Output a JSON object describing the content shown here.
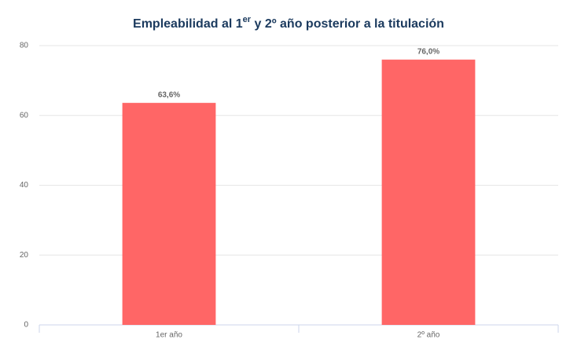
{
  "chart_data": {
    "type": "bar",
    "title": [
      {
        "text": "Empleabilidad al 1"
      },
      {
        "text": "er",
        "sup": true
      },
      {
        "text": " y 2º año posterior a la titulación"
      }
    ],
    "categories": [
      "1er año",
      "2º año"
    ],
    "values": [
      63.6,
      76.0
    ],
    "value_labels": [
      "63,6%",
      "76,0%"
    ],
    "color": "#ff6666",
    "ylim": [
      0,
      80
    ],
    "yticks": [
      0,
      20,
      40,
      60,
      80
    ],
    "grid": true
  }
}
